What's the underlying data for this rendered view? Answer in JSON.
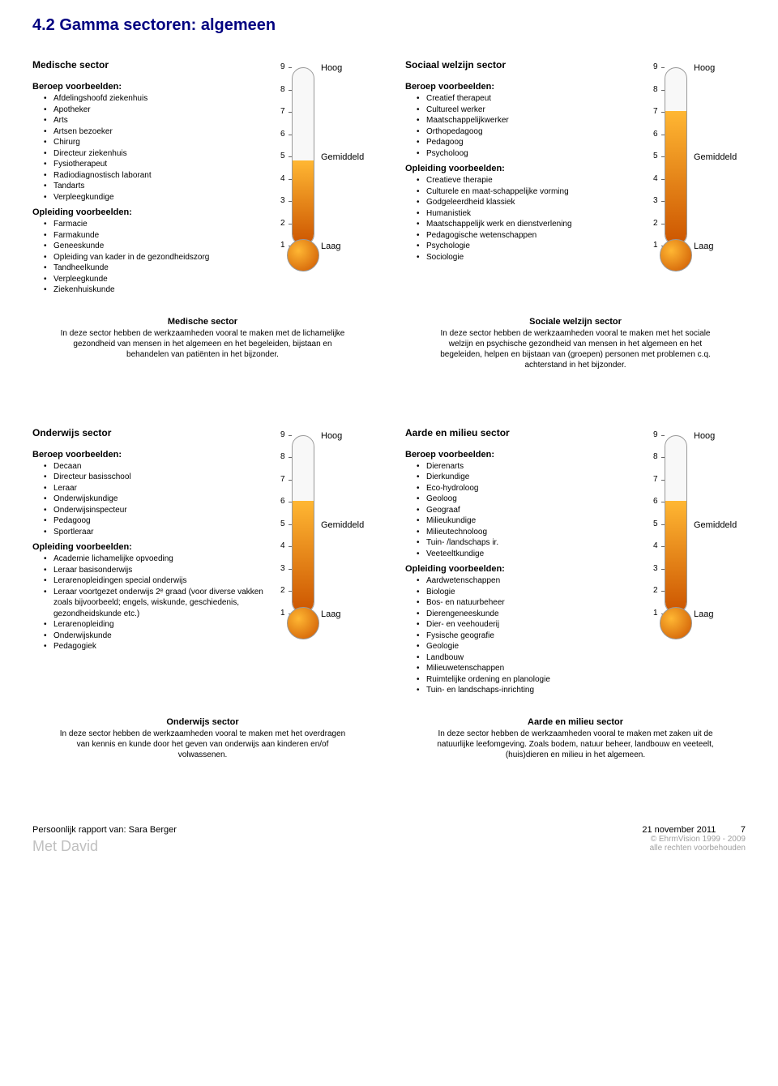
{
  "page_title": "4.2 Gamma sectoren: algemeen",
  "scale": {
    "ticks": [
      9,
      8,
      7,
      6,
      5,
      4,
      3,
      2,
      1
    ],
    "labels": {
      "high": "Hoog",
      "mid": "Gemiddeld",
      "low": "Laag"
    }
  },
  "thermo_style": {
    "track_bg": "#f8f8f8",
    "border": "#999999",
    "gradient_top": "#ffb733",
    "gradient_bottom": "#cc5500"
  },
  "sectors": [
    {
      "title": "Medische sector",
      "beroep_heading": "Beroep voorbeelden:",
      "beroep": [
        "Afdelingshoofd ziekenhuis",
        "Apotheker",
        "Arts",
        "Artsen bezoeker",
        "Chirurg",
        "Directeur ziekenhuis",
        "Fysiotherapeut",
        "Radiodiagnostisch laborant",
        "Tandarts",
        "Verpleegkundige"
      ],
      "opleiding_heading": "Opleiding voorbeelden:",
      "opleiding": [
        "Farmacie",
        "Farmakunde",
        "Geneeskunde",
        "Opleiding van kader in de gezondheidszorg",
        "Tandheelkunde",
        "Verpleegkunde",
        "Ziekenhuiskunde"
      ],
      "value": 4.8,
      "desc_title": "Medische sector",
      "desc": "In deze sector hebben de werkzaamheden vooral te maken met de lichamelijke gezondheid van mensen in het algemeen en het begeleiden, bijstaan en behandelen van patiënten in het bijzonder."
    },
    {
      "title": "Sociaal welzijn sector",
      "beroep_heading": "Beroep voorbeelden:",
      "beroep": [
        "Creatief therapeut",
        "Cultureel werker",
        "Maatschappelijkwerker",
        "Orthopedagoog",
        "Pedagoog",
        "Psycholoog"
      ],
      "opleiding_heading": "Opleiding voorbeelden:",
      "opleiding": [
        "Creatieve therapie",
        "Culturele en maat-schappelijke vorming",
        "Godgeleerdheid klassiek",
        "Humanistiek",
        "Maatschappelijk werk en dienstverlening",
        "Pedagogische wetenschappen",
        "Psychologie",
        "Sociologie"
      ],
      "value": 7.0,
      "desc_title": "Sociale welzijn sector",
      "desc": "In deze sector hebben de werkzaamheden vooral te maken met het sociale welzijn en psychische gezondheid van mensen in het algemeen en het begeleiden, helpen en bijstaan van (groepen) personen met problemen c.q. achterstand in het bijzonder."
    },
    {
      "title": "Onderwijs sector",
      "beroep_heading": "Beroep voorbeelden:",
      "beroep": [
        "Decaan",
        "Directeur basisschool",
        "Leraar",
        "Onderwijskundige",
        "Onderwijsinspecteur",
        "Pedagoog",
        "Sportleraar"
      ],
      "opleiding_heading": "Opleiding voorbeelden:",
      "opleiding": [
        "Academie lichamelijke opvoeding",
        "Leraar basisonderwijs",
        "Lerarenopleidingen special onderwijs",
        "Leraar voortgezet onderwijs 2ᵉ graad (voor diverse vakken zoals bijvoorbeeld; engels, wiskunde, geschiedenis, gezondheidskunde etc.)",
        "Lerarenopleiding",
        "Onderwijskunde",
        "Pedagogiek"
      ],
      "value": 6.0,
      "desc_title": "Onderwijs sector",
      "desc": "In deze sector hebben de werkzaamheden vooral te maken met het overdragen van kennis en kunde door het geven van onderwijs aan kinderen en/of volwassenen."
    },
    {
      "title": "Aarde en milieu sector",
      "beroep_heading": "Beroep voorbeelden:",
      "beroep": [
        "Dierenarts",
        "Dierkundige",
        "Eco-hydroloog",
        "Geoloog",
        "Geograaf",
        "Milieukundige",
        "Milieutechnoloog",
        "Tuin- /landschaps ir.",
        "Veeteeltkundige"
      ],
      "opleiding_heading": "Opleiding voorbeelden:",
      "opleiding": [
        "Aardwetenschappen",
        "Biologie",
        "Bos- en natuurbeheer",
        "Dierengeneeskunde",
        "Dier- en veehouderij",
        "Fysische geografie",
        "Geologie",
        "Landbouw",
        "Milieuwetenschappen",
        "Ruimtelijke ordening en planologie",
        "Tuin- en landschaps-inrichting"
      ],
      "value": 6.0,
      "desc_title": "Aarde en milieu sector",
      "desc": "In deze sector hebben de werkzaamheden vooral te maken met zaken uit de natuurlijke leefomgeving. Zoals bodem, natuur beheer, landbouw en veeteelt, (huis)dieren en milieu in het algemeen."
    }
  ],
  "footer": {
    "report_of": "Persoonlijk rapport van: Sara Berger",
    "sub": "Met David",
    "date": "21 november 2011",
    "page": "7",
    "copyright1": "© EhrmVision 1999 - 2009",
    "copyright2": "alle rechten voorbehouden"
  }
}
